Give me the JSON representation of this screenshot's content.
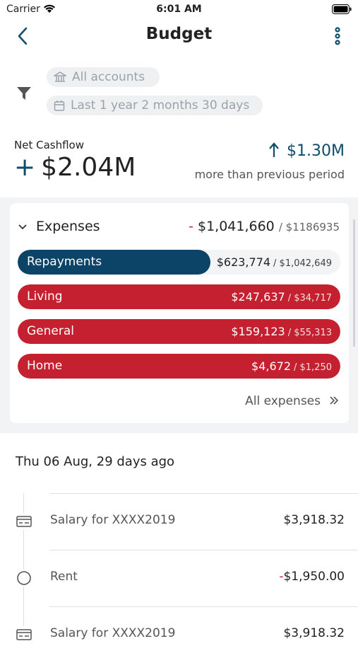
{
  "status": {
    "carrier": "Carrier",
    "time": "6:01 AM"
  },
  "header": {
    "title": "Budget"
  },
  "filters": {
    "accounts": "All accounts",
    "period": "Last 1 year 2 months 30 days"
  },
  "cashflow": {
    "label": "Net Cashflow",
    "sign": "+",
    "value": "$2.04M",
    "change": "$1.30M",
    "change_note": "more than previous period"
  },
  "expenses": {
    "title": "Expenses",
    "sign": "-",
    "spent": "$1,041,660",
    "budget": "/ $1186935",
    "rows": [
      {
        "name": "Repayments",
        "spent": "$623,774",
        "budget": "/ $1,042,649"
      },
      {
        "name": "Living",
        "spent": "$247,637",
        "budget": "/ $34,717"
      },
      {
        "name": "General",
        "spent": "$159,123",
        "budget": "/ $55,313"
      },
      {
        "name": "Home",
        "spent": "$4,672",
        "budget": "/ $1,250"
      }
    ],
    "link": "All expenses"
  },
  "transactions": {
    "date": "Thu 06 Aug, 29 days ago",
    "items": [
      {
        "name": "Salary for XXXX2019",
        "sign": "",
        "amount": "$3,918.32"
      },
      {
        "name": "Rent",
        "sign": "-",
        "amount": "$1,950.00"
      },
      {
        "name": "Salary for XXXX2019",
        "sign": "",
        "amount": "$3,918.32"
      }
    ]
  }
}
